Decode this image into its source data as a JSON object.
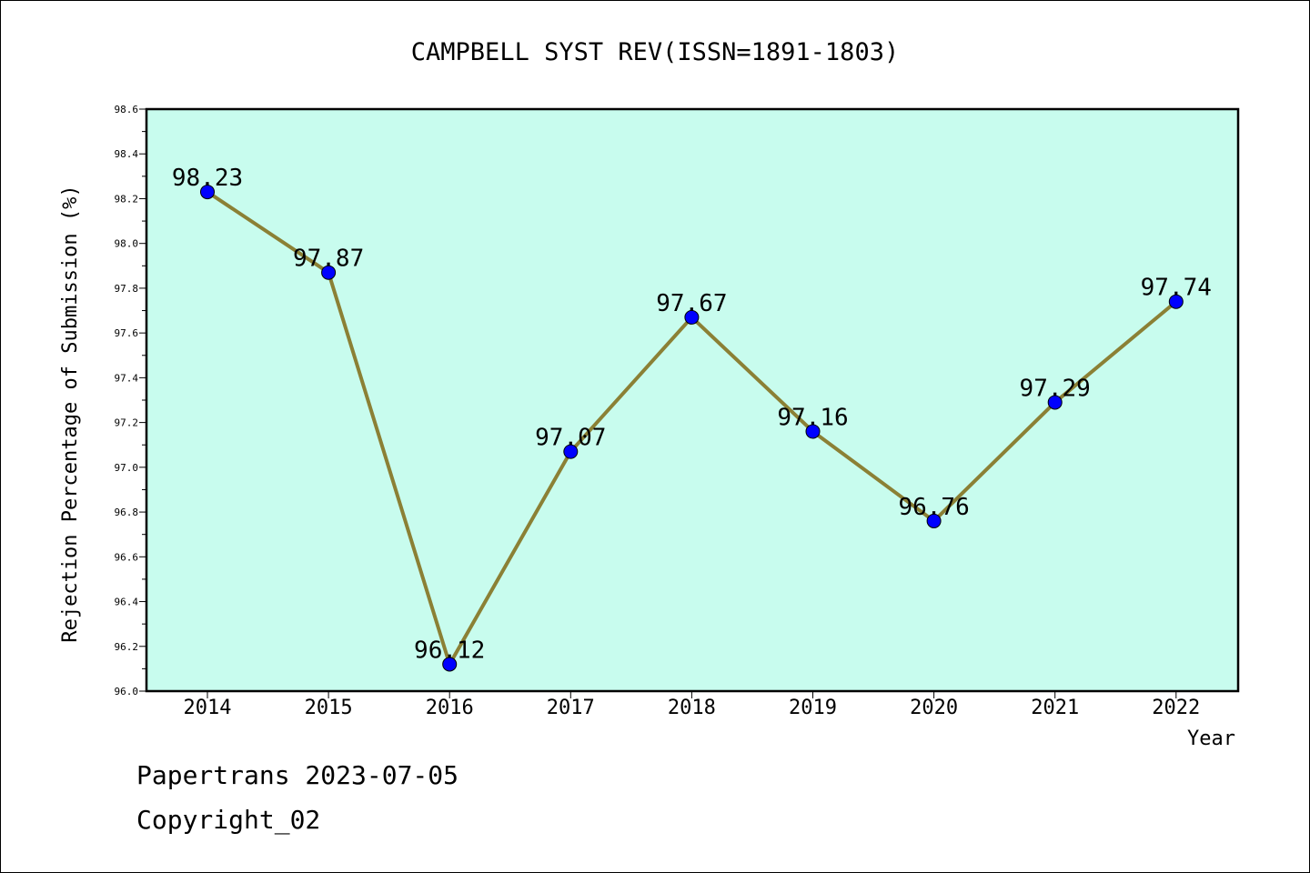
{
  "chart_data": {
    "type": "line",
    "title": "CAMPBELL SYST REV(ISSN=1891-1803)",
    "xlabel": "Year",
    "ylabel": "Rejection Percentage of Submission (%)",
    "categories": [
      "2014",
      "2015",
      "2016",
      "2017",
      "2018",
      "2019",
      "2020",
      "2021",
      "2022"
    ],
    "values": [
      98.23,
      97.87,
      96.12,
      97.07,
      97.67,
      97.16,
      96.76,
      97.29,
      97.74
    ],
    "data_labels": [
      "98.23",
      "97.87",
      "96.12",
      "97.07",
      "97.67",
      "97.16",
      "96.76",
      "97.29",
      "97.74"
    ],
    "ylim": [
      96.0,
      98.6
    ],
    "yticks": [
      "96.0",
      "96.2",
      "96.4",
      "96.6",
      "96.8",
      "97.0",
      "97.2",
      "97.4",
      "97.6",
      "97.8",
      "98.0",
      "98.2",
      "98.4",
      "98.6"
    ],
    "grid": false,
    "legend": "none",
    "colors": {
      "plot_background": "#c8fcee",
      "line": "#8b8035",
      "marker": "#0000ff"
    }
  },
  "footer": {
    "line1": "Papertrans 2023-07-05",
    "line2": "Copyright_02"
  }
}
